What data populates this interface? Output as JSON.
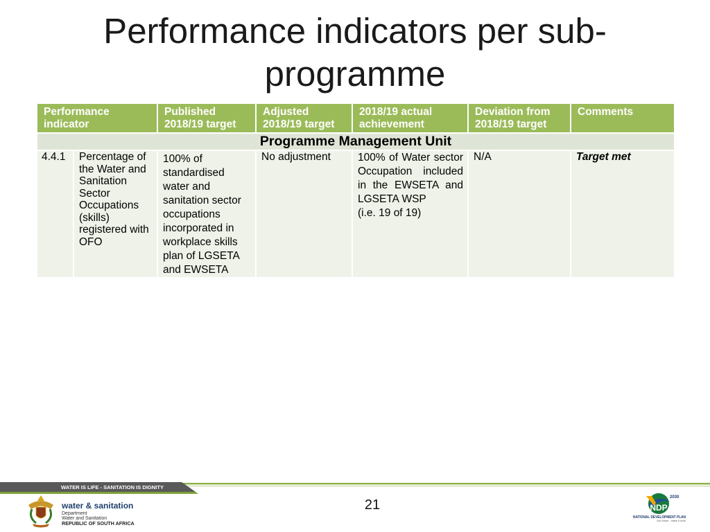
{
  "slide": {
    "title": "Performance indicators per sub-programme",
    "page_number": "21"
  },
  "table": {
    "headers": {
      "indicator": "Performance indicator",
      "published_target": "Published 2018/19 target",
      "adjusted_target": "Adjusted 2018/19 target",
      "actual_achievement": "2018/19 actual achievement",
      "deviation": "Deviation from 2018/19 target",
      "comments": "Comments"
    },
    "section_title": "Programme Management Unit",
    "rows": [
      {
        "number": "4.4.1",
        "indicator": "Percentage of the Water and Sanitation Sector Occupations (skills) registered with OFO",
        "published_target": "100% of standardised water and sanitation sector occupations incorporated in workplace skills plan of LGSETA and EWSETA",
        "adjusted_target": "No adjustment",
        "actual_achievement": "100% of Water sector Occupation included in the EWSETA and LGSETA WSP",
        "actual_achievement_detail": "(i.e. 19 of 19)",
        "deviation": "N/A",
        "comments": "Target met"
      }
    ]
  },
  "footer": {
    "slogan": "WATER IS LIFE - SANITATION IS DIGNITY",
    "department_logo": {
      "icon": "coat-of-arms-icon",
      "brand": "water & sanitation",
      "lines": [
        "Department",
        "Water and Sanitation",
        "REPUBLIC OF SOUTH AFRICA"
      ]
    },
    "ndp_logo": {
      "icon": "ndp-logo-icon",
      "year": "2030",
      "acronym": "NDP",
      "name": "NATIONAL DEVELOPMENT PLAN",
      "tagline": "Our future - make it work"
    }
  },
  "colors": {
    "header_background": "#9bbb59",
    "section_background": "#dfe5d6",
    "row_background": "#eef2e8",
    "header_text": "#ffffff",
    "footer_band": "#595959",
    "footer_line": "#9bbb59"
  }
}
